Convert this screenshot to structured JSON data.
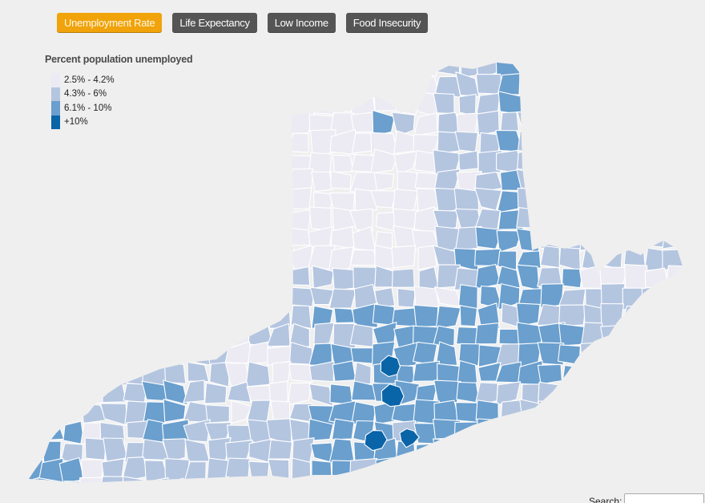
{
  "buttons": [
    {
      "label": "Unemployment Rate",
      "active": true
    },
    {
      "label": "Life Expectancy",
      "active": false
    },
    {
      "label": "Low Income",
      "active": false
    },
    {
      "label": "Food Insecurity",
      "active": false
    }
  ],
  "legend": {
    "title": "Percent population unemployed",
    "items": [
      {
        "label": "2.5% - 4.2%",
        "color": "#ecebf3"
      },
      {
        "label": "4.3% - 6%",
        "color": "#b4c5e0"
      },
      {
        "label": "6.1% - 10%",
        "color": "#6a9fce"
      },
      {
        "label": "+10%",
        "color": "#0a64a8"
      }
    ]
  },
  "search": {
    "label": "Search:",
    "value": ""
  },
  "colors": {
    "background": "#efefef",
    "border": "#ffffff"
  }
}
